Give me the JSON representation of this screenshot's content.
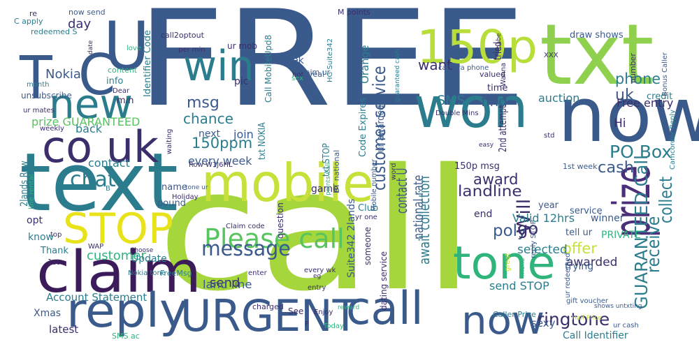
{
  "words": [
    {
      "text": "FREE",
      "color": "#3b5a8c"
    },
    {
      "text": "call",
      "color": "#a5d63c"
    },
    {
      "text": "txt",
      "color": "#8fd14f"
    },
    {
      "text": "now",
      "color": "#3b5a8c"
    },
    {
      "text": "won",
      "color": "#2b7d8e"
    },
    {
      "text": "text",
      "color": "#2b7d8e"
    },
    {
      "text": "mobile",
      "color": "#c7e03a"
    },
    {
      "text": "U",
      "color": "#3b5a8c"
    },
    {
      "text": "C",
      "color": "#3b5a8c"
    },
    {
      "text": "T",
      "color": "#3b5a8c"
    },
    {
      "text": "win",
      "color": "#2b7d8e"
    },
    {
      "text": "new",
      "color": "#2b7d8e"
    },
    {
      "text": "co uk",
      "color": "#3b2e6b"
    },
    {
      "text": "150p",
      "color": "#b8de3c"
    },
    {
      "text": "claim",
      "color": "#3b1b5a"
    },
    {
      "text": "reply",
      "color": "#3b5a8c"
    },
    {
      "text": "STOP",
      "color": "#e8e21a"
    },
    {
      "text": "URGENT",
      "color": "#3b5a8c"
    },
    {
      "text": "call",
      "color": "#3b5a8c"
    },
    {
      "text": "now",
      "color": "#3b5a8c"
    },
    {
      "text": "tone",
      "color": "#2fb47c"
    },
    {
      "text": "prize",
      "color": "#4a2f79"
    },
    {
      "text": "Please call",
      "color": "#58c45f"
    },
    {
      "text": "message",
      "color": "#3b5a8c"
    },
    {
      "text": "chat",
      "color": "#2b7d8e"
    },
    {
      "text": "ringtone",
      "color": "#3b2e6b"
    },
    {
      "text": "customer service",
      "color": "#3b5a8c"
    },
    {
      "text": "GUARANTEED Call",
      "color": "#2b7d8e"
    },
    {
      "text": "receive",
      "color": "#2b7d8e"
    },
    {
      "text": "collect",
      "color": "#2b7d8e"
    },
    {
      "text": "Will",
      "color": "#3b2e6b"
    },
    {
      "text": "PO Box",
      "color": "#2b7d8e"
    },
    {
      "text": "cash",
      "color": "#3b5a8c"
    },
    {
      "text": "award",
      "color": "#3b2e6b"
    },
    {
      "text": "landline",
      "color": "#3b2e6b"
    },
    {
      "text": "poly",
      "color": "#3b5a8c"
    },
    {
      "text": "go",
      "color": "#3b2e6b"
    },
    {
      "text": "phone",
      "color": "#2b7d8e"
    },
    {
      "text": "uk",
      "color": "#3b5a8c"
    },
    {
      "text": "want",
      "color": "#3b2e6b"
    },
    {
      "text": "SMS",
      "color": "#2b7d8e"
    },
    {
      "text": "find",
      "color": "#3b5a8c"
    },
    {
      "text": "msg",
      "color": "#3b5a8c"
    },
    {
      "text": "chance",
      "color": "#2b7d8e"
    },
    {
      "text": "150ppm",
      "color": "#2b7d8e"
    },
    {
      "text": "every week",
      "color": "#3b5a8c"
    },
    {
      "text": "send",
      "color": "#3b2e6b"
    },
    {
      "text": "land line",
      "color": "#3b5a8c"
    },
    {
      "text": "Nokia",
      "color": "#3b5a8c"
    },
    {
      "text": "day",
      "color": "#3b2e6b"
    },
    {
      "text": "prize GUARANTEED",
      "color": "#58c45f"
    },
    {
      "text": "back",
      "color": "#2b7d8e"
    },
    {
      "text": "contact",
      "color": "#2b7d8e"
    },
    {
      "text": "offer",
      "color": "#c7e03a"
    },
    {
      "text": "selected",
      "color": "#2b7d8e"
    },
    {
      "text": "awarded",
      "color": "#3b2e6b"
    },
    {
      "text": "send STOP",
      "color": "#2b7d8e"
    },
    {
      "text": "contact U",
      "color": "#3b5a8c"
    },
    {
      "text": "national rate",
      "color": "#3b5a8c"
    },
    {
      "text": "await collection",
      "color": "#2b7d8e"
    },
    {
      "text": "Free entry",
      "color": "#3b2e6b"
    },
    {
      "text": "auction",
      "color": "#2b7d8e"
    },
    {
      "text": "Valid 12hrs",
      "color": "#2b7d8e"
    },
    {
      "text": "Hi",
      "color": "#3b2e6b"
    },
    {
      "text": "customer",
      "color": "#2fb47c"
    },
    {
      "text": "Account Statement",
      "color": "#2b7d8e"
    },
    {
      "text": "Xmas",
      "color": "#3b5a8c"
    },
    {
      "text": "latest",
      "color": "#3b2e6b"
    },
    {
      "text": "Thank",
      "color": "#2b7d8e"
    },
    {
      "text": "know",
      "color": "#2b7d8e"
    },
    {
      "text": "opt",
      "color": "#3b2e6b"
    },
    {
      "text": "Update",
      "color": "#2b7d8e"
    },
    {
      "text": "Club",
      "color": "#2b7d8e"
    },
    {
      "text": "game",
      "color": "#3b2e6b"
    },
    {
      "text": "next",
      "color": "#3b5a8c"
    },
    {
      "text": "join",
      "color": "#3b5a8c"
    },
    {
      "text": "pic",
      "color": "#3b2e6b"
    },
    {
      "text": "x",
      "color": "#3b5a8c"
    },
    {
      "text": "week",
      "color": "#3b5a8c"
    },
    {
      "text": "Orange",
      "color": "#2b7d8e"
    },
    {
      "text": "Call MobileUpd8",
      "color": "#2b7d8e"
    },
    {
      "text": "draw shows",
      "color": "#3b5a8c"
    },
    {
      "text": "winner",
      "color": "#3b5a8c"
    },
    {
      "text": "PRIVATE",
      "color": "#2fb47c"
    },
    {
      "text": "trying",
      "color": "#3b5a8c"
    },
    {
      "text": "Call Identifier",
      "color": "#2b7d8e"
    },
    {
      "text": "tried",
      "color": "#3b2e6b"
    },
    {
      "text": "2nd attempt",
      "color": "#3b2e6b"
    },
    {
      "text": "150p msg",
      "color": "#3b2e6b"
    },
    {
      "text": "credit",
      "color": "#2b7d8e"
    },
    {
      "text": "time",
      "color": "#3b2e6b"
    },
    {
      "text": "1st week",
      "color": "#3b5a8c"
    },
    {
      "text": "info",
      "color": "#2b7d8e"
    },
    {
      "text": "min",
      "color": "#3b2e6b"
    },
    {
      "text": "pound",
      "color": "#3b5a8c"
    },
    {
      "text": "name",
      "color": "#3b5a8c"
    },
    {
      "text": "service",
      "color": "#3b5a8c"
    },
    {
      "text": "year",
      "color": "#3b5a8c"
    },
    {
      "text": "tell ur",
      "color": "#3b5a8c"
    },
    {
      "text": "end",
      "color": "#3b2e6b"
    },
    {
      "text": "Identifier Code",
      "color": "#2b7d8e"
    },
    {
      "text": "Code Expires",
      "color": "#2b7d8e"
    },
    {
      "text": "Suite342 2lands",
      "color": "#3b5a8c"
    },
    {
      "text": "2lands Row",
      "color": "#2b7d8e"
    },
    {
      "text": "ur awarded",
      "color": "#3b5a8c"
    },
    {
      "text": "txt STOP",
      "color": "#2b7d8e"
    },
    {
      "text": "txt NOKIA",
      "color": "#2b7d8e"
    },
    {
      "text": "question",
      "color": "#3b2e6b"
    },
    {
      "text": "someone",
      "color": "#3b2e6b"
    },
    {
      "text": "dating service",
      "color": "#3b2e6b"
    },
    {
      "text": "ur mob",
      "color": "#3b2e6b"
    },
    {
      "text": "per min",
      "color": "#3b2e6b"
    },
    {
      "text": "Claim ur",
      "color": "#3b5a8c"
    },
    {
      "text": "reveal",
      "color": "#3b5a8c"
    },
    {
      "text": "sexy",
      "color": "#3b5a8c"
    },
    {
      "text": "ur cash",
      "color": "#3b5a8c"
    },
    {
      "text": "Caller Prize",
      "color": "#2b7d8e"
    },
    {
      "text": "unsubscribe",
      "color": "#3b5a8c"
    },
    {
      "text": "redeemed S",
      "color": "#2b7d8e"
    },
    {
      "text": "now send",
      "color": "#3b5a8c"
    },
    {
      "text": "M points",
      "color": "#3b2e6b"
    },
    {
      "text": "C apply",
      "color": "#2b7d8e"
    },
    {
      "text": "content",
      "color": "#2fb47c"
    },
    {
      "text": "Dear",
      "color": "#3b2e6b"
    },
    {
      "text": "weekly",
      "color": "#3b2e6b"
    },
    {
      "text": "Nokia tone",
      "color": "#2b7d8e"
    },
    {
      "text": "Choose",
      "color": "#3b2e6b"
    },
    {
      "text": "FreeMsg",
      "color": "#2b7d8e"
    },
    {
      "text": "Today",
      "color": "#2fb47c"
    },
    {
      "text": "Enjoy",
      "color": "#3b2e6b"
    },
    {
      "text": "charged",
      "color": "#3b2e6b"
    },
    {
      "text": "entry",
      "color": "#3b2e6b"
    },
    {
      "text": "every wk",
      "color": "#3b2e6b"
    },
    {
      "text": "enter",
      "color": "#3b2e6b"
    },
    {
      "text": "yr one",
      "color": "#3b2e6b"
    },
    {
      "text": "BT national",
      "color": "#3b5a8c"
    },
    {
      "text": "Mobile number",
      "color": "#3b5a8c"
    },
    {
      "text": "word",
      "color": "#3b2e6b"
    },
    {
      "text": "Double Mins",
      "color": "#3b2e6b"
    },
    {
      "text": "camera phone",
      "color": "#3b5a8c"
    },
    {
      "text": "number",
      "color": "#3b2e6b"
    },
    {
      "text": "Bonus Caller",
      "color": "#3b5a8c"
    },
    {
      "text": "Camcorder Reply",
      "color": "#2b7d8e"
    },
    {
      "text": "XXX",
      "color": "#3b2e6b"
    },
    {
      "text": "babe",
      "color": "#3b2e6b"
    },
    {
      "text": "valued",
      "color": "#3b2e6b"
    },
    {
      "text": "Wanna",
      "color": "#3b2e6b"
    },
    {
      "text": "std",
      "color": "#3b2e6b"
    },
    {
      "text": "easy",
      "color": "#3b2e6b"
    },
    {
      "text": "gift voucher",
      "color": "#3b5a8c"
    },
    {
      "text": "reply STOP",
      "color": "#3b5a8c"
    },
    {
      "text": "ur redeemed",
      "color": "#3b5a8c"
    },
    {
      "text": "shows untxting",
      "color": "#3b5a8c"
    },
    {
      "text": "Half Price",
      "color": "#c7e03a"
    },
    {
      "text": "friend",
      "color": "#2fb47c"
    },
    {
      "text": "great",
      "color": "#c7e03a"
    },
    {
      "text": "reward",
      "color": "#2fb47c"
    },
    {
      "text": "SMS ac",
      "color": "#2fb47c"
    },
    {
      "text": "WAP",
      "color": "#3b2e6b"
    },
    {
      "text": "top",
      "color": "#3b2e6b"
    },
    {
      "text": "line rental",
      "color": "#2fb47c"
    },
    {
      "text": "tone ur",
      "color": "#3b5a8c"
    },
    {
      "text": "Holiday",
      "color": "#3b2e6b"
    },
    {
      "text": "Row W1J6HL",
      "color": "#3b2e6b"
    },
    {
      "text": "waiting",
      "color": "#3b2e6b"
    },
    {
      "text": "Claim code",
      "color": "#3b2e6b"
    },
    {
      "text": "points Call",
      "color": "#2fb47c"
    },
    {
      "text": "1st",
      "color": "#3b2e6b"
    },
    {
      "text": "eg",
      "color": "#3b2e6b"
    },
    {
      "text": "See",
      "color": "#3b2e6b"
    },
    {
      "text": "F",
      "color": "#3b2e6b"
    },
    {
      "text": "B",
      "color": "#2b7d8e"
    },
    {
      "text": "ur mates",
      "color": "#3b2e6b"
    },
    {
      "text": "month",
      "color": "#2b7d8e"
    },
    {
      "text": "love",
      "color": "#2fb47c"
    },
    {
      "text": "hot",
      "color": "#3b2e6b"
    },
    {
      "text": "sex",
      "color": "#2fb47c"
    },
    {
      "text": "date",
      "color": "#3b2e6b"
    },
    {
      "text": "call2optout",
      "color": "#3b2e6b"
    },
    {
      "text": "HG Suite342",
      "color": "#2b7d8e"
    },
    {
      "text": "re",
      "color": "#3b2e6b"
    },
    {
      "text": "guaranteed cash",
      "color": "#2b7d8e"
    }
  ]
}
